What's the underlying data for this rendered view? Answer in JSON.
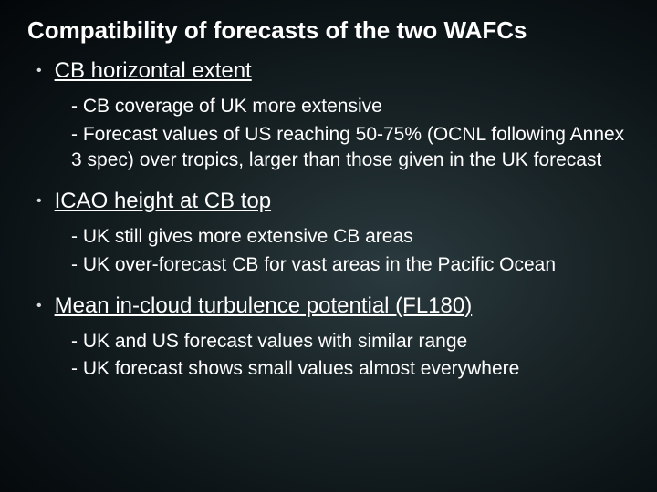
{
  "slide": {
    "title": "Compatibility of forecasts of the two WAFCs",
    "sections": [
      {
        "heading": "CB horizontal extent",
        "items": [
          "- CB coverage of UK more extensive",
          "- Forecast values of US reaching 50-75% (OCNL following Annex 3 spec) over tropics, larger than those given in the UK forecast"
        ]
      },
      {
        "heading": "ICAO height at CB top",
        "items": [
          "- UK still gives more extensive CB areas",
          "- UK over-forecast CB for vast areas in the Pacific Ocean"
        ]
      },
      {
        "heading": "Mean in-cloud turbulence potential (FL180)",
        "items": [
          "- UK and US forecast values with similar range",
          "- UK forecast shows small values almost everywhere"
        ]
      }
    ]
  },
  "colors": {
    "text": "#ffffff",
    "bg_center": "#2a3a3f",
    "bg_edge": "#030608"
  },
  "typography": {
    "title_fontsize": 26,
    "heading_fontsize": 24,
    "body_fontsize": 21,
    "font_family": "Arial"
  }
}
